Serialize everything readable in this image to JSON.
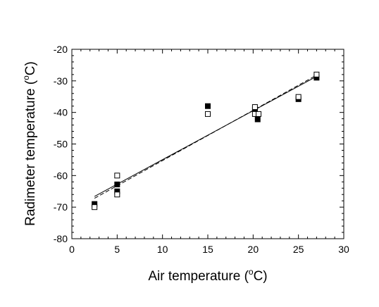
{
  "chart_data": {
    "type": "scatter",
    "title": "",
    "xlabel": {
      "pre": "Air temperature (",
      "sup": "o",
      "post": "C)"
    },
    "ylabel": {
      "pre": "Radimeter temperature (",
      "sup": "o",
      "post": "C)"
    },
    "xlim": [
      0,
      30
    ],
    "ylim": [
      -80,
      -20
    ],
    "x_ticks": [
      0,
      5,
      10,
      15,
      20,
      25,
      30
    ],
    "y_ticks": [
      -80,
      -70,
      -60,
      -50,
      -40,
      -30,
      -20
    ],
    "x_tick_labels": [
      "0",
      "5",
      "10",
      "15",
      "20",
      "25",
      "30"
    ],
    "y_tick_labels": [
      "-80",
      "-70",
      "-60",
      "-50",
      "-40",
      "-30",
      "-20"
    ],
    "grid": false,
    "series": [
      {
        "marker": "filled-square",
        "color": "#000000",
        "points": [
          [
            2.5,
            -69.0
          ],
          [
            5.0,
            -62.8
          ],
          [
            5.0,
            -65.0
          ],
          [
            15.0,
            -38.0
          ],
          [
            20.2,
            -39.0
          ],
          [
            20.5,
            -42.2
          ],
          [
            25.0,
            -35.8
          ],
          [
            27.0,
            -29.0
          ]
        ],
        "fit": {
          "line": "solid",
          "from": [
            2.5,
            -66.6
          ],
          "to": [
            27.0,
            -28.6
          ]
        }
      },
      {
        "marker": "open-square",
        "color": "#000000",
        "points": [
          [
            2.5,
            -70.0
          ],
          [
            5.0,
            -60.0
          ],
          [
            5.0,
            -66.0
          ],
          [
            15.0,
            -40.5
          ],
          [
            20.2,
            -38.3
          ],
          [
            20.2,
            -40.5
          ],
          [
            20.6,
            -40.5
          ],
          [
            25.0,
            -35.1
          ],
          [
            27.0,
            -28.0
          ]
        ],
        "fit": {
          "line": "dashed",
          "from": [
            2.5,
            -67.2
          ],
          "to": [
            27.0,
            -28.2
          ]
        }
      }
    ]
  }
}
